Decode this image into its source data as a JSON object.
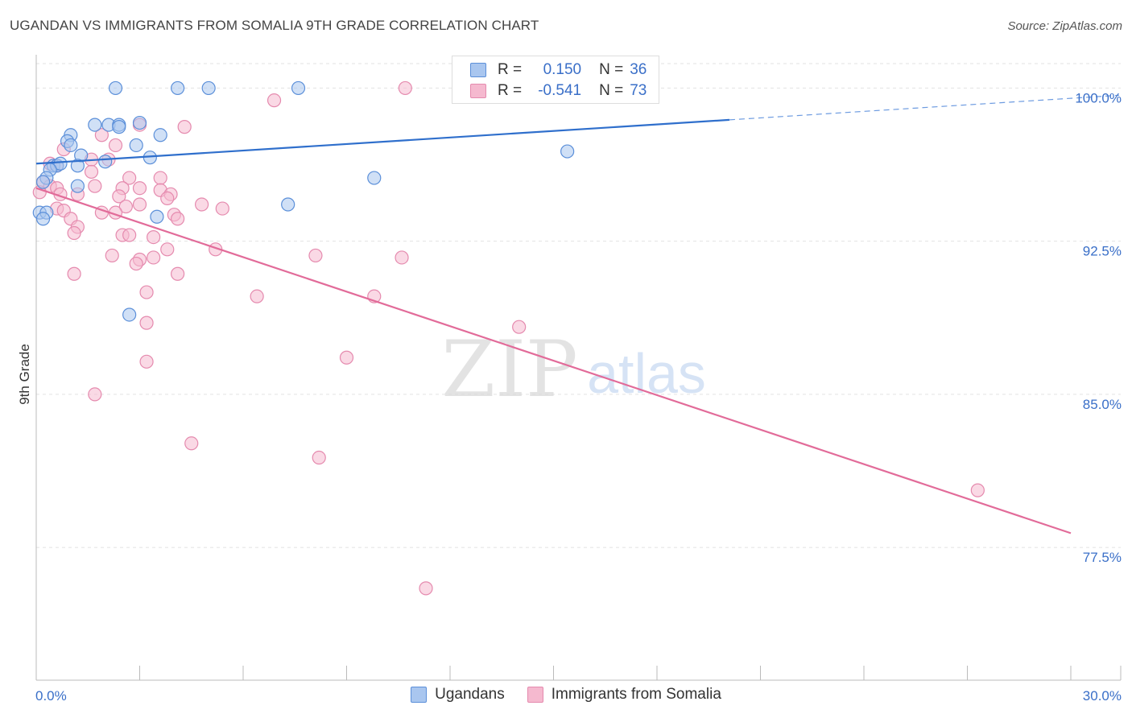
{
  "title": "UGANDAN VS IMMIGRANTS FROM SOMALIA 9TH GRADE CORRELATION CHART",
  "source": "Source: ZipAtlas.com",
  "watermark": {
    "zip": "ZIP",
    "atlas": "atlas"
  },
  "legend": {
    "r_label": "R =",
    "n_label": "N =",
    "series": [
      {
        "name": "Ugandans",
        "r": "0.150",
        "n": "36",
        "color": "#3a78d4",
        "fill": "#a9c6ef"
      },
      {
        "name": "Immigrants from Somalia",
        "r": "-0.541",
        "n": "73",
        "color": "#e26b99",
        "fill": "#f5b9cf"
      }
    ]
  },
  "chart_data": {
    "type": "scatter",
    "title": "UGANDAN VS IMMIGRANTS FROM SOMALIA 9TH GRADE CORRELATION CHART",
    "xlabel": "",
    "ylabel": "9th Grade",
    "xlim": [
      0,
      30
    ],
    "ylim": [
      71.0,
      101.2
    ],
    "x_tick_labels": [
      "0.0%",
      "30.0%"
    ],
    "y_ticks": [
      100.0,
      92.5,
      85.0,
      77.5
    ],
    "y_tick_labels": [
      "100.0%",
      "92.5%",
      "85.0%",
      "77.5%"
    ],
    "grid": true,
    "series": [
      {
        "name": "Ugandans",
        "color": "#3a78d4",
        "points": [
          [
            2.3,
            100.0
          ],
          [
            4.1,
            100.0
          ],
          [
            5.0,
            100.0
          ],
          [
            7.6,
            100.0
          ],
          [
            1.7,
            98.2
          ],
          [
            2.1,
            98.2
          ],
          [
            2.4,
            98.2
          ],
          [
            2.4,
            98.1
          ],
          [
            3.0,
            98.3
          ],
          [
            1.0,
            97.7
          ],
          [
            0.9,
            97.4
          ],
          [
            1.0,
            97.2
          ],
          [
            2.9,
            97.2
          ],
          [
            3.6,
            97.7
          ],
          [
            1.3,
            96.7
          ],
          [
            3.3,
            96.6
          ],
          [
            15.4,
            96.9
          ],
          [
            0.5,
            96.2
          ],
          [
            0.6,
            96.2
          ],
          [
            0.7,
            96.3
          ],
          [
            1.2,
            96.2
          ],
          [
            2.0,
            96.4
          ],
          [
            0.4,
            96.0
          ],
          [
            0.3,
            95.6
          ],
          [
            0.2,
            95.4
          ],
          [
            9.8,
            95.6
          ],
          [
            1.2,
            95.2
          ],
          [
            0.1,
            93.9
          ],
          [
            0.3,
            93.9
          ],
          [
            7.3,
            94.3
          ],
          [
            3.5,
            93.7
          ],
          [
            0.2,
            93.6
          ],
          [
            2.7,
            88.9
          ]
        ],
        "trend": {
          "x": [
            0,
            30
          ],
          "y": [
            96.3,
            99.5
          ],
          "solid_until": 20.1
        }
      },
      {
        "name": "Immigrants from Somalia",
        "color": "#e26b99",
        "points": [
          [
            10.7,
            100.0
          ],
          [
            6.9,
            99.4
          ],
          [
            3.0,
            98.2
          ],
          [
            4.3,
            98.1
          ],
          [
            1.9,
            97.7
          ],
          [
            2.3,
            97.2
          ],
          [
            0.8,
            97.0
          ],
          [
            1.6,
            96.5
          ],
          [
            2.1,
            96.5
          ],
          [
            0.4,
            96.3
          ],
          [
            0.6,
            96.2
          ],
          [
            1.6,
            95.9
          ],
          [
            2.7,
            95.6
          ],
          [
            3.6,
            95.6
          ],
          [
            0.2,
            95.4
          ],
          [
            0.4,
            95.2
          ],
          [
            0.6,
            95.1
          ],
          [
            1.7,
            95.2
          ],
          [
            3.0,
            95.1
          ],
          [
            3.6,
            95.0
          ],
          [
            2.5,
            95.1
          ],
          [
            0.1,
            94.9
          ],
          [
            0.7,
            94.8
          ],
          [
            1.2,
            94.8
          ],
          [
            3.9,
            94.8
          ],
          [
            2.4,
            94.7
          ],
          [
            3.8,
            94.6
          ],
          [
            3.0,
            94.3
          ],
          [
            2.6,
            94.2
          ],
          [
            4.8,
            94.3
          ],
          [
            5.4,
            94.1
          ],
          [
            0.6,
            94.1
          ],
          [
            0.8,
            94.0
          ],
          [
            1.9,
            93.9
          ],
          [
            2.3,
            93.9
          ],
          [
            4.0,
            93.8
          ],
          [
            1.0,
            93.6
          ],
          [
            4.1,
            93.6
          ],
          [
            1.2,
            93.2
          ],
          [
            2.5,
            92.8
          ],
          [
            2.7,
            92.8
          ],
          [
            1.1,
            92.9
          ],
          [
            3.4,
            92.7
          ],
          [
            3.8,
            92.1
          ],
          [
            5.2,
            92.1
          ],
          [
            2.2,
            91.8
          ],
          [
            3.0,
            91.6
          ],
          [
            3.4,
            91.7
          ],
          [
            8.1,
            91.8
          ],
          [
            10.6,
            91.7
          ],
          [
            2.9,
            91.4
          ],
          [
            1.1,
            90.9
          ],
          [
            4.1,
            90.9
          ],
          [
            3.2,
            90.0
          ],
          [
            6.4,
            89.8
          ],
          [
            9.8,
            89.8
          ],
          [
            3.2,
            88.5
          ],
          [
            14.0,
            88.3
          ],
          [
            3.2,
            86.6
          ],
          [
            9.0,
            86.8
          ],
          [
            1.7,
            85.0
          ],
          [
            4.5,
            82.6
          ],
          [
            8.2,
            81.9
          ],
          [
            27.3,
            80.3
          ],
          [
            11.3,
            75.5
          ]
        ],
        "trend": {
          "x": [
            0,
            30
          ],
          "y": [
            95.1,
            78.2
          ]
        }
      }
    ]
  }
}
